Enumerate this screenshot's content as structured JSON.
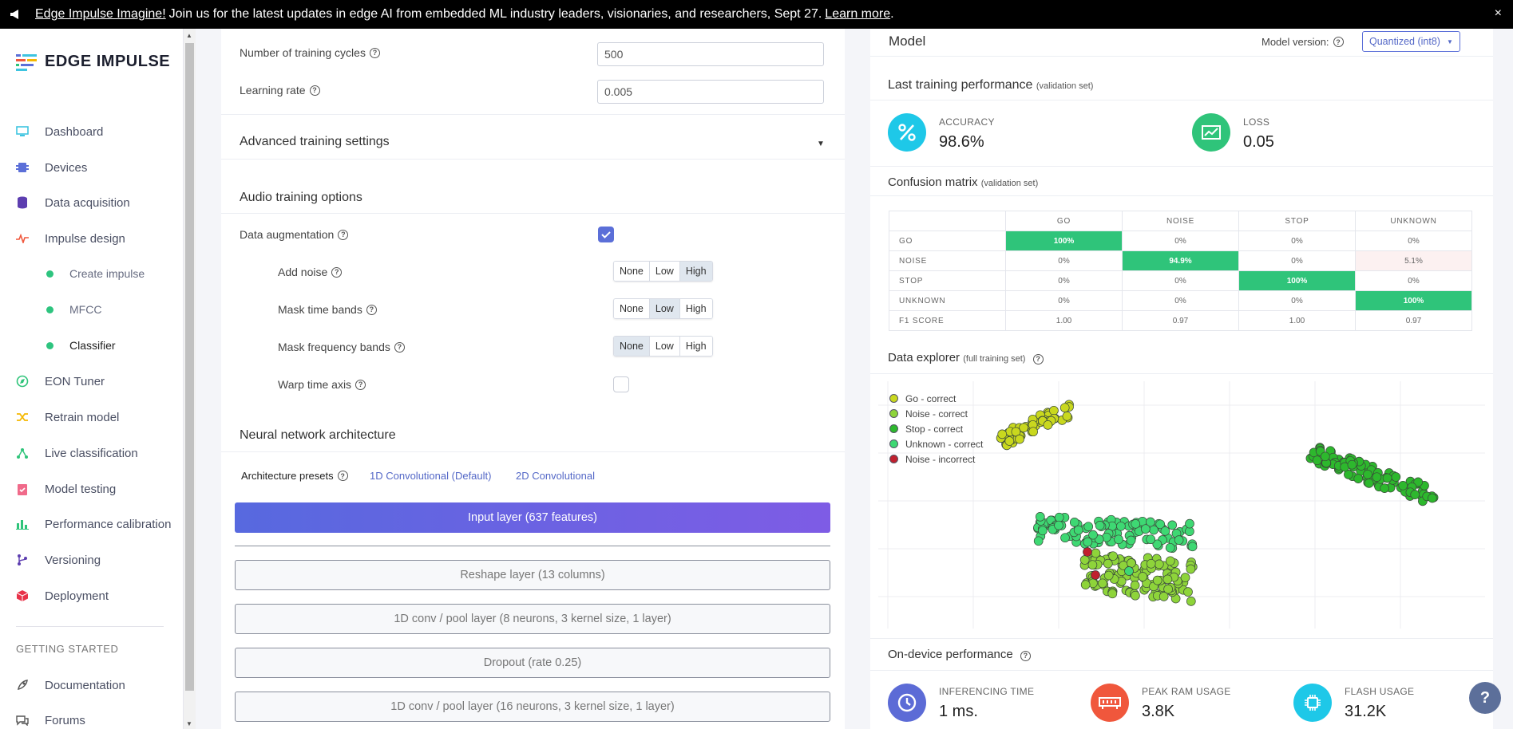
{
  "banner": {
    "bold": "Edge Impulse Imagine!",
    "text": " Join us for the latest updates in edge AI from embedded ML industry leaders, visionaries, and researchers, Sept 27.",
    "link": "Learn more",
    "after_link": ".",
    "close": "×"
  },
  "sidebar": {
    "logo": "EDGE IMPULSE",
    "items": [
      {
        "label": "Dashboard"
      },
      {
        "label": "Devices"
      },
      {
        "label": "Data acquisition"
      },
      {
        "label": "Impulse design"
      },
      {
        "label": "EON Tuner"
      },
      {
        "label": "Retrain model"
      },
      {
        "label": "Live classification"
      },
      {
        "label": "Model testing"
      },
      {
        "label": "Performance calibration"
      },
      {
        "label": "Versioning"
      },
      {
        "label": "Deployment"
      }
    ],
    "sub_items": [
      {
        "label": "Create impulse"
      },
      {
        "label": "MFCC"
      },
      {
        "label": "Classifier"
      }
    ],
    "section_label": "GETTING STARTED",
    "bottom_items": [
      {
        "label": "Documentation"
      },
      {
        "label": "Forums"
      }
    ]
  },
  "training": {
    "cycles_label": "Number of training cycles",
    "cycles_value": "500",
    "lr_label": "Learning rate",
    "lr_value": "0.005",
    "advanced_label": "Advanced training settings"
  },
  "audio": {
    "heading": "Audio training options",
    "augmentation_label": "Data augmentation",
    "augmentation_checked": true,
    "add_noise_label": "Add noise",
    "mask_time_label": "Mask time bands",
    "mask_freq_label": "Mask frequency bands",
    "warp_label": "Warp time axis",
    "warp_checked": false,
    "seg_none": "None",
    "seg_low": "Low",
    "seg_high": "High",
    "add_noise_selected": "High",
    "mask_time_selected": "Low",
    "mask_freq_selected": "None"
  },
  "nn": {
    "heading": "Neural network architecture",
    "presets_label": "Architecture presets",
    "preset_1": "1D Convolutional (Default)",
    "preset_2": "2D Convolutional",
    "input_layer": "Input layer (637 features)",
    "layers": [
      "Reshape layer (13 columns)",
      "1D conv / pool layer (8 neurons, 3 kernel size, 1 layer)",
      "Dropout (rate 0.25)",
      "1D conv / pool layer (16 neurons, 3 kernel size, 1 layer)"
    ]
  },
  "model": {
    "title": "Model",
    "version_label": "Model version:",
    "version_value": "Quantized (int8)",
    "last_perf": "Last training performance",
    "last_perf_note": "(validation set)",
    "accuracy_label": "ACCURACY",
    "accuracy_value": "98.6%",
    "loss_label": "LOSS",
    "loss_value": "0.05",
    "cm_title": "Confusion matrix",
    "cm_note": "(validation set)",
    "cm": {
      "columns": [
        "GO",
        "NOISE",
        "STOP",
        "UNKNOWN"
      ],
      "rows": [
        {
          "label": "GO",
          "cells": [
            "100%",
            "0%",
            "0%",
            "0%"
          ]
        },
        {
          "label": "NOISE",
          "cells": [
            "0%",
            "94.9%",
            "0%",
            "5.1%"
          ]
        },
        {
          "label": "STOP",
          "cells": [
            "0%",
            "0%",
            "100%",
            "0%"
          ]
        },
        {
          "label": "UNKNOWN",
          "cells": [
            "0%",
            "0%",
            "0%",
            "100%"
          ]
        },
        {
          "label": "F1 SCORE",
          "cells": [
            "1.00",
            "0.97",
            "1.00",
            "0.97"
          ]
        }
      ]
    },
    "explorer_title": "Data explorer",
    "explorer_note": "(full training set)",
    "legend": [
      {
        "label": "Go - correct",
        "color": "#c9d81e"
      },
      {
        "label": "Noise - correct",
        "color": "#8ed43a"
      },
      {
        "label": "Stop - correct",
        "color": "#2db82d"
      },
      {
        "label": "Unknown - correct",
        "color": "#3ed873"
      },
      {
        "label": "Noise - incorrect",
        "color": "#c0202e"
      }
    ],
    "ondevice_title": "On-device performance",
    "inferencing_label": "INFERENCING TIME",
    "inferencing_value": "1 ms.",
    "ram_label": "PEAK RAM USAGE",
    "ram_value": "3.8K",
    "flash_label": "FLASH USAGE",
    "flash_value": "31.2K"
  },
  "colors": {
    "accent": "#5b6fd8",
    "accuracy": "#1ec8e8",
    "loss": "#2fc47a",
    "inference": "#5c6bd6",
    "ram": "#f0573c",
    "flash": "#1ec8e8"
  }
}
